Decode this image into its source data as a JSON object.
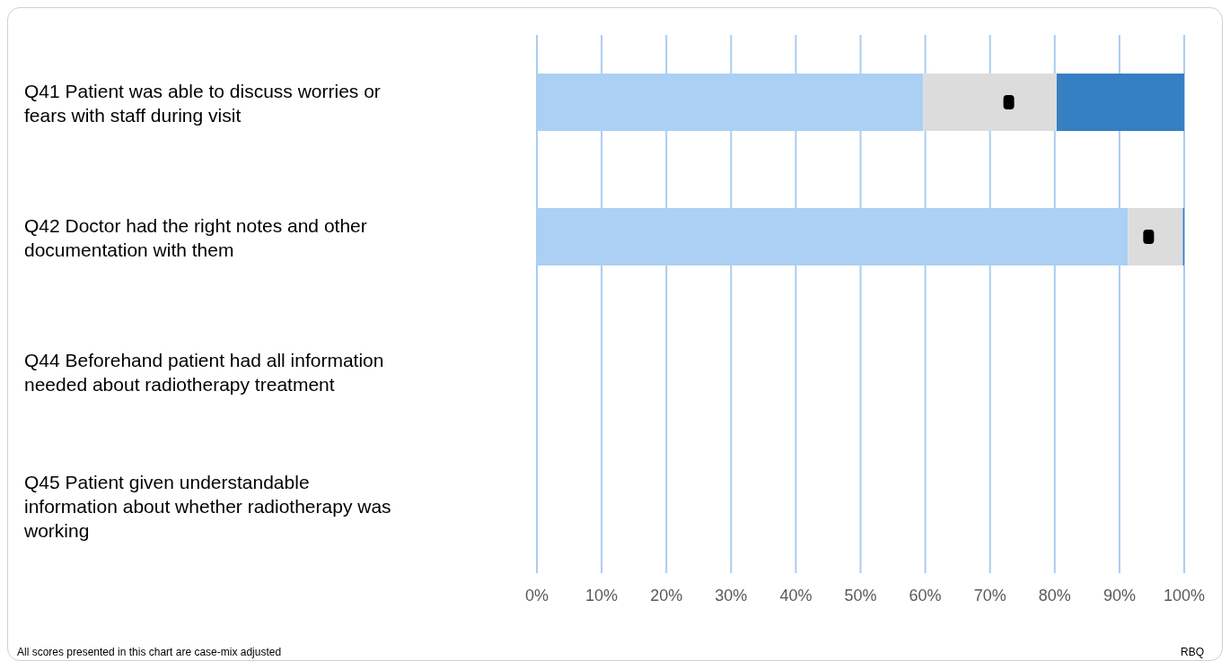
{
  "chart_data": {
    "type": "bar",
    "orientation": "horizontal",
    "stacked": true,
    "categories": [
      "Q41 Patient was able to discuss worries or fears with staff during visit",
      "Q42 Doctor had the right notes and other documentation with them",
      "Q44 Beforehand patient had all information needed about radiotherapy treatment",
      "Q45 Patient given understandable information about whether radiotherapy was working"
    ],
    "series": [
      {
        "color": "#abd0f3",
        "values": [
          59.7,
          91.3,
          null,
          null
        ]
      },
      {
        "color": "#dddcdc",
        "values": [
          20.6,
          8.5,
          null,
          null
        ]
      },
      {
        "color": "#357fc3",
        "values": [
          19.7,
          0.2,
          null,
          null
        ]
      },
      {
        "type": "scatter",
        "color": "#000000",
        "values": [
          72.9,
          94.5,
          null,
          null
        ]
      }
    ],
    "marker": "square",
    "xlim": [
      0,
      100
    ],
    "xticks": [
      {
        "value": 0,
        "label": "0%"
      },
      {
        "value": 10,
        "label": "10%"
      },
      {
        "value": 20,
        "label": "20%"
      },
      {
        "value": 30,
        "label": "30%"
      },
      {
        "value": 40,
        "label": "40%"
      },
      {
        "value": 50,
        "label": "50%"
      },
      {
        "value": 60,
        "label": "60%"
      },
      {
        "value": 70,
        "label": "70%"
      },
      {
        "value": 80,
        "label": "80%"
      },
      {
        "value": 90,
        "label": "90%"
      },
      {
        "value": 100,
        "label": "100%"
      }
    ],
    "grid": "x",
    "annotations": [
      "All scores presented in this chart are case-mix adjusted",
      "RBQ"
    ]
  }
}
